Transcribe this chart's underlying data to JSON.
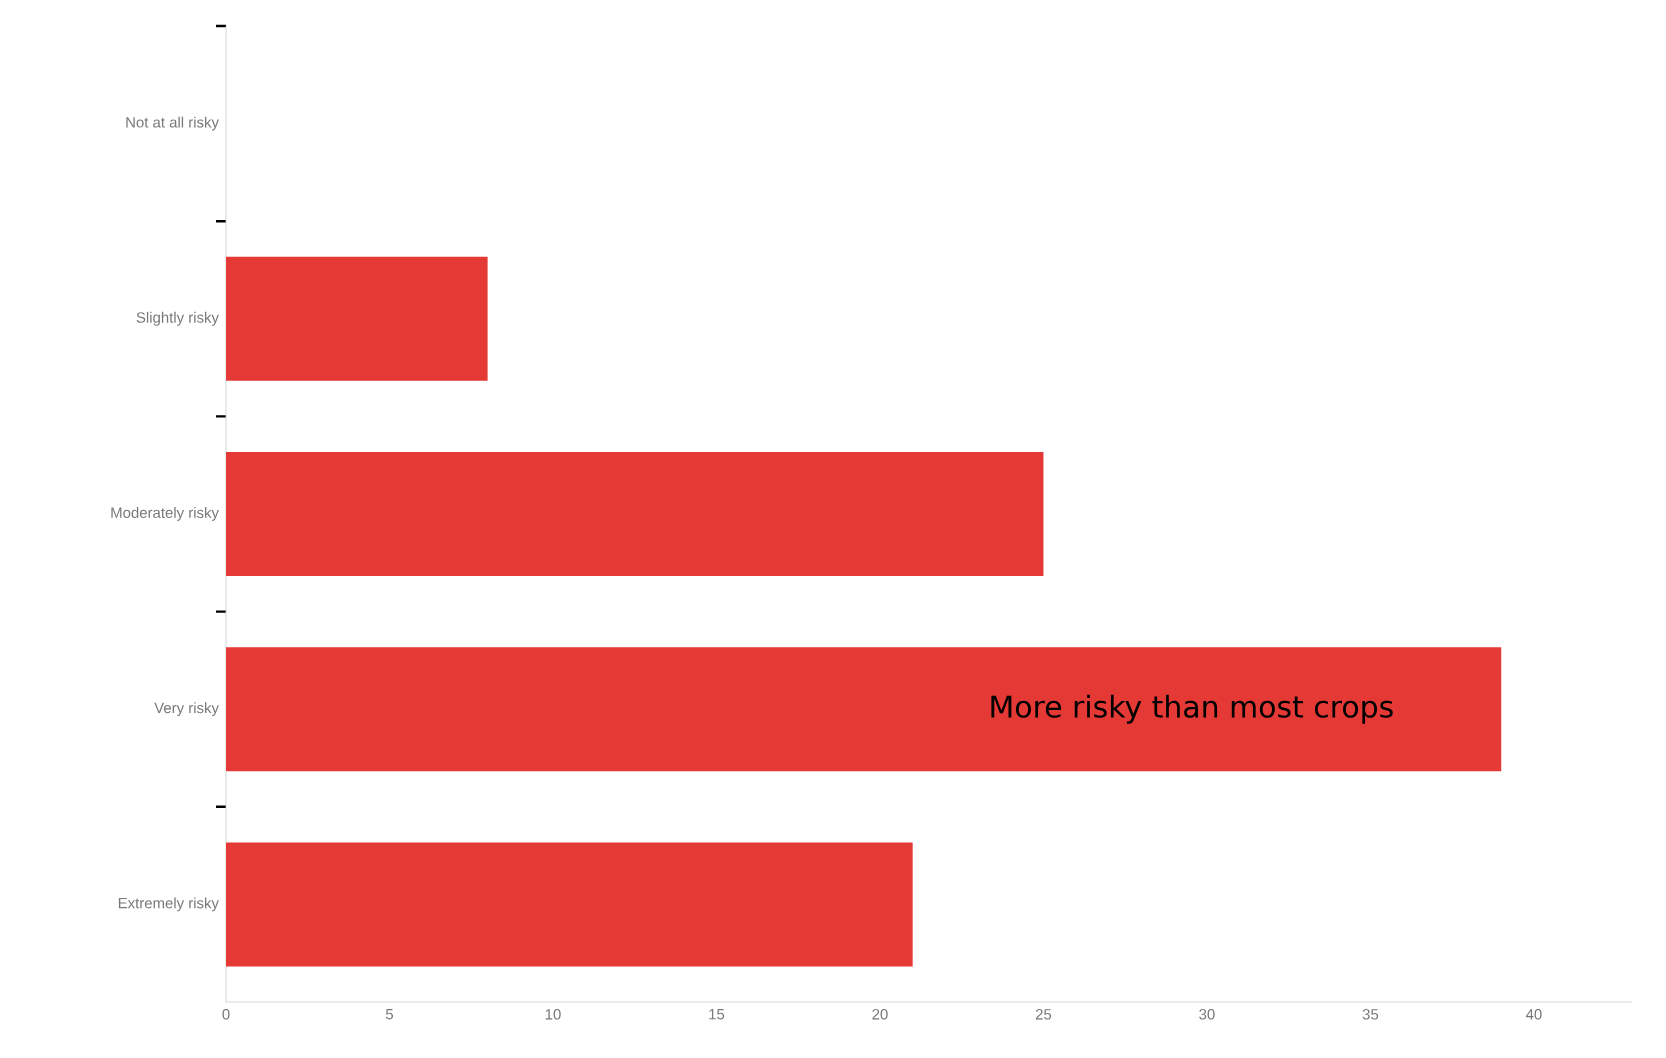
{
  "chart_data": {
    "type": "bar",
    "orientation": "horizontal",
    "categories": [
      "Not at all risky",
      "Slightly risky",
      "Moderately risky",
      "Very risky",
      "Extremely risky"
    ],
    "values": [
      0,
      8,
      25,
      39,
      21
    ],
    "color": "#e53935",
    "xlim": [
      0,
      43
    ],
    "xticks": [
      0,
      5,
      10,
      15,
      20,
      25,
      30,
      35,
      40
    ],
    "grid": false,
    "annotations": [
      "More risky than most crops"
    ]
  }
}
